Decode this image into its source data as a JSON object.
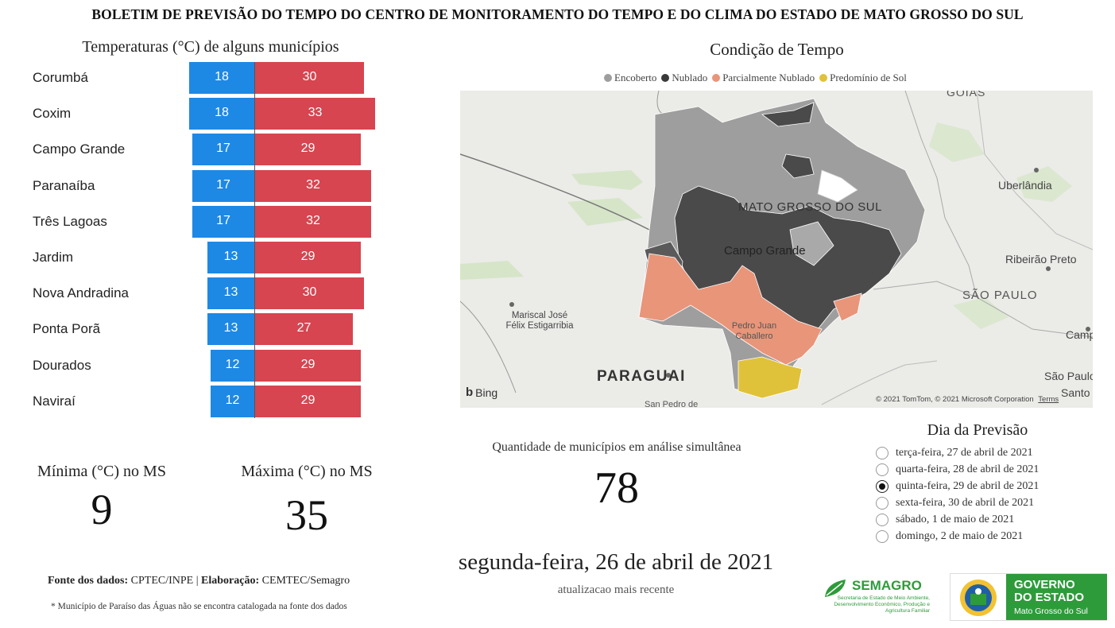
{
  "header": {
    "title": "BOLETIM DE PREVISÃO DO TEMPO DO CENTRO DE MONITORAMENTO DO TEMPO E DO CLIMA DO ESTADO DE MATO GROSSO DO SUL"
  },
  "temperatures": {
    "title": "Temperaturas (°C) de alguns municípios",
    "rows": [
      {
        "city": "Corumbá",
        "min": "18",
        "max": "30"
      },
      {
        "city": "Coxim",
        "min": "18",
        "max": "33"
      },
      {
        "city": "Campo Grande",
        "min": "17",
        "max": "29"
      },
      {
        "city": "Paranaíba",
        "min": "17",
        "max": "32"
      },
      {
        "city": "Três Lagoas",
        "min": "17",
        "max": "32"
      },
      {
        "city": "Jardim",
        "min": "13",
        "max": "29"
      },
      {
        "city": "Nova Andradina",
        "min": "13",
        "max": "30"
      },
      {
        "city": "Ponta Porã",
        "min": "13",
        "max": "27"
      },
      {
        "city": "Dourados",
        "min": "12",
        "max": "29"
      },
      {
        "city": "Naviraí",
        "min": "12",
        "max": "29"
      }
    ],
    "colors": {
      "min": "#1e88e5",
      "max": "#d64550"
    }
  },
  "stats": {
    "min_label": "Mínima (°C) no MS",
    "min_value": "9",
    "max_label": "Máxima (°C) no MS",
    "max_value": "35"
  },
  "footer": {
    "source_label": "Fonte dos dados:",
    "source_value": "CPTEC/INPE",
    "separator": "|",
    "elab_label": "Elaboração:",
    "elab_value": "CEMTEC/Semagro",
    "footnote": "* Município de Paraíso das Águas não se encontra catalogada na fonte dos dados"
  },
  "condition": {
    "title": "Condição de Tempo",
    "legend": [
      {
        "label": "Encoberto",
        "color": "#9e9e9e"
      },
      {
        "label": "Nublado",
        "color": "#3a3a3a"
      },
      {
        "label": "Parcialmente Nublado",
        "color": "#e8957a"
      },
      {
        "label": "Predomínio de Sol",
        "color": "#e0c23a"
      }
    ]
  },
  "map": {
    "labels": {
      "goias": "GOIAS",
      "state": "MATO GROSSO DO SUL",
      "campo_grande": "Campo Grande",
      "uberlandia": "Uberlândia",
      "ribeirao": "Ribeirão Preto",
      "sao_paulo_state": "SÃO PAULO",
      "campinas": "Campir",
      "sao_paulo_city": "São Paulo",
      "santos": "Santo",
      "mariscal": "Mariscal José Félix Estigarribia",
      "pedro_juan": "Pedro Juan Caballero",
      "paraguai": "PARAGUAI",
      "san_pedro": "San Pedro de",
      "bing": "Bing",
      "copyright": "© 2021 TomTom, © 2021 Microsoft Corporation",
      "terms": "Terms"
    }
  },
  "count": {
    "label": "Quantidade de municípios em análise simultânea",
    "value": "78"
  },
  "update": {
    "date": "segunda-feira, 26 de abril de 2021",
    "caption": "atualizacao mais recente"
  },
  "forecast_day": {
    "title": "Dia da Previsão",
    "options": [
      {
        "label": "terça-feira, 27 de abril de 2021",
        "selected": false
      },
      {
        "label": "quarta-feira, 28 de abril de 2021",
        "selected": false
      },
      {
        "label": "quinta-feira, 29 de abril de 2021",
        "selected": true
      },
      {
        "label": "sexta-feira, 30 de abril de 2021",
        "selected": false
      },
      {
        "label": "sábado, 1 de maio de 2021",
        "selected": false
      },
      {
        "label": "domingo, 2 de maio de 2021",
        "selected": false
      }
    ]
  },
  "logos": {
    "semagro_name": "SEMAGRO",
    "semagro_desc": "Secretaria de Estado de Meio Ambiente, Desenvolvimento Econômico, Produção e Agricultura Familiar",
    "gov_line1": "GOVERNO",
    "gov_line2": "DO ESTADO",
    "gov_line3": "Mato Grosso do Sul"
  }
}
